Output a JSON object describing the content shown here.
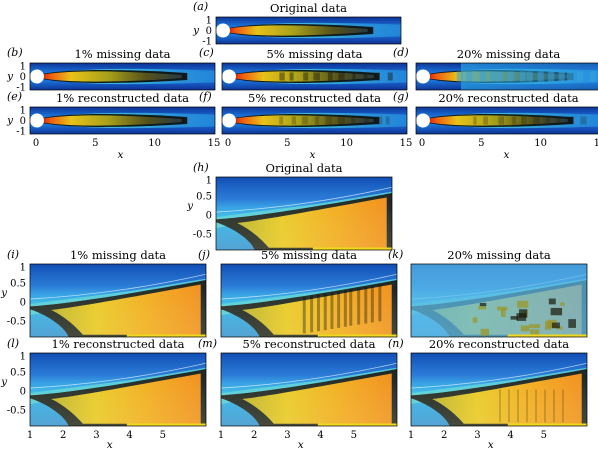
{
  "figure": {
    "top_group": {
      "x_label": "x",
      "y_label": "y",
      "x_ticks": [
        "0",
        "5",
        "10",
        "15"
      ],
      "y_ticks": [
        "1",
        "0",
        "-1"
      ],
      "panels": [
        {
          "id": "a",
          "letter": "(a)",
          "title": "Original data",
          "variant": "orig"
        },
        {
          "id": "b",
          "letter": "(b)",
          "title": "1% missing data",
          "variant": "m1"
        },
        {
          "id": "c",
          "letter": "(c)",
          "title": "5% missing data",
          "variant": "m5"
        },
        {
          "id": "d",
          "letter": "(d)",
          "title": "20% missing data",
          "variant": "m20"
        },
        {
          "id": "e",
          "letter": "(e)",
          "title": "1% reconstructed data",
          "variant": "r1"
        },
        {
          "id": "f",
          "letter": "(f)",
          "title": "5% reconstructed data",
          "variant": "r5"
        },
        {
          "id": "g",
          "letter": "(g)",
          "title": "20% reconstructed data",
          "variant": "r20"
        }
      ]
    },
    "bottom_group": {
      "x_label": "x",
      "y_label": "y",
      "x_ticks": [
        "1",
        "2",
        "3",
        "4",
        "5"
      ],
      "y_ticks": [
        "1",
        "0.5",
        "0",
        "-0.5"
      ],
      "panels": [
        {
          "id": "h",
          "letter": "(h)",
          "title": "Original data",
          "variant": "orig"
        },
        {
          "id": "i",
          "letter": "(i)",
          "title": "1% missing data",
          "variant": "m1"
        },
        {
          "id": "j",
          "letter": "(j)",
          "title": "5% missing data",
          "variant": "m5"
        },
        {
          "id": "k",
          "letter": "(k)",
          "title": "20% missing data",
          "variant": "m20"
        },
        {
          "id": "l",
          "letter": "(l)",
          "title": "1% reconstructed data",
          "variant": "r1"
        },
        {
          "id": "m",
          "letter": "(m)",
          "title": "5% reconstructed data",
          "variant": "r5"
        },
        {
          "id": "n",
          "letter": "(n)",
          "title": "20% reconstructed data",
          "variant": "r20"
        }
      ]
    },
    "colormap": [
      "#0a2a8a",
      "#1560d0",
      "#22a8e8",
      "#4fd0d0",
      "#0c0c06",
      "#3f3a0e",
      "#a8a01a",
      "#e8d21a",
      "#f0a010",
      "#ef5a10",
      "#c81408"
    ]
  }
}
